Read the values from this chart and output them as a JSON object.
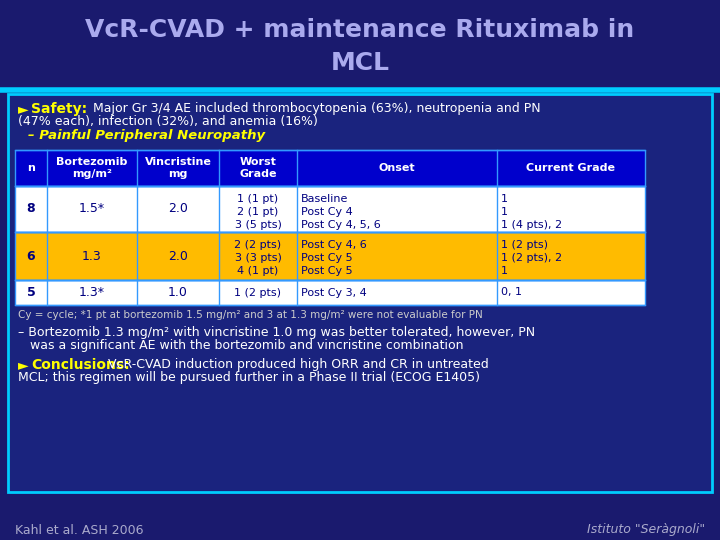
{
  "bg_color": "#1a1a6e",
  "title_line1": "VcR-CVAD + maintenance Rituximab in",
  "title_line2": "MCL",
  "title_color": "#aaaaee",
  "title_fontsize": 18,
  "content_bg": "#1a237e",
  "border_color": "#00ccff",
  "safety_bullet": "►",
  "safety_label": "Safety:",
  "safety_label_color": "#ffff00",
  "safety_line1": " Major Gr 3/4 AE included thrombocytopenia (63%), neutropenia and PN",
  "safety_line2": "(47% each), infection (32%), and anemia (16%)",
  "safety_text_color": "#ffffff",
  "ppn_text": "– Painful Peripheral Neuropathy",
  "ppn_color": "#ffff00",
  "table_header_bg": "#0000cc",
  "table_header_text": "#ffffff",
  "table_row1_bg": "#ffffff",
  "table_row1_text": "#000080",
  "table_row2_bg": "#ffbb00",
  "table_row2_text": "#000080",
  "table_row3_bg": "#ffffff",
  "table_row3_text": "#000080",
  "table_border": "#3399ff",
  "footnote": "Cy = cycle; *1 pt at bortezomib 1.5 mg/m² and 3 at 1.3 mg/m² were not evaluable for PN",
  "footnote_color": "#cccccc",
  "b2_line1": "– Bortezomib 1.3 mg/m² with vincristine 1.0 mg was better tolerated, however, PN",
  "b2_line2": "   was a significant AE with the bortezomib and vincristine combination",
  "b2_color": "#ffffff",
  "conc_label": "Conclusions:",
  "conc_label_color": "#ffff00",
  "conc_line1": " VcR-CVAD induction produced high ORR and CR in untreated",
  "conc_line2": "MCL; this regimen will be pursued further in a Phase II trial (ECOG E1405)",
  "conc_text_color": "#ffffff",
  "footer_left": "Kahl et al. ASH 2006",
  "footer_right": "Istituto \"Seràgnoli\"",
  "footer_color": "#aaaacc"
}
